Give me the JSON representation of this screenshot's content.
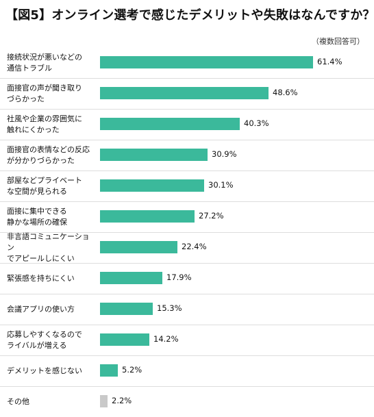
{
  "header": {
    "title": "【図5】オンライン選考で感じたデメリットや失敗はなんですか？",
    "note": "（複数回答可）"
  },
  "colors": {
    "bar": "#3bb99b",
    "bar_other": "#c9c9c9"
  },
  "chart_data": {
    "type": "bar",
    "orientation": "horizontal",
    "title": "【図5】オンライン選考で感じたデメリットや失敗はなんですか？",
    "categories": [
      "接続状況が悪いなどの\n通信トラブル",
      "面接官の声が聞き取り\nづらかった",
      "社風や企業の雰囲気に\n触れにくかった",
      "面接官の表情などの反応\nが分かりづらかった",
      "部屋などプライベート\nな空間が見られる",
      "面接に集中できる\n静かな場所の確保",
      "非言語コミュニケーション\nでアピールしにくい",
      "緊張感を持ちにくい",
      "会議アプリの使い方",
      "応募しやすくなるので\nライバルが増える",
      "デメリットを感じない",
      "その他"
    ],
    "values": [
      61.4,
      48.6,
      40.3,
      30.9,
      30.1,
      27.2,
      22.4,
      17.9,
      15.3,
      14.2,
      5.2,
      2.2
    ],
    "value_labels": [
      "61.4%",
      "48.6%",
      "40.3%",
      "30.9%",
      "30.1%",
      "27.2%",
      "22.4%",
      "17.9%",
      "15.3%",
      "14.2%",
      "5.2%",
      "2.2%"
    ],
    "xlim": [
      0,
      70
    ],
    "grid": false,
    "legend": "none"
  }
}
